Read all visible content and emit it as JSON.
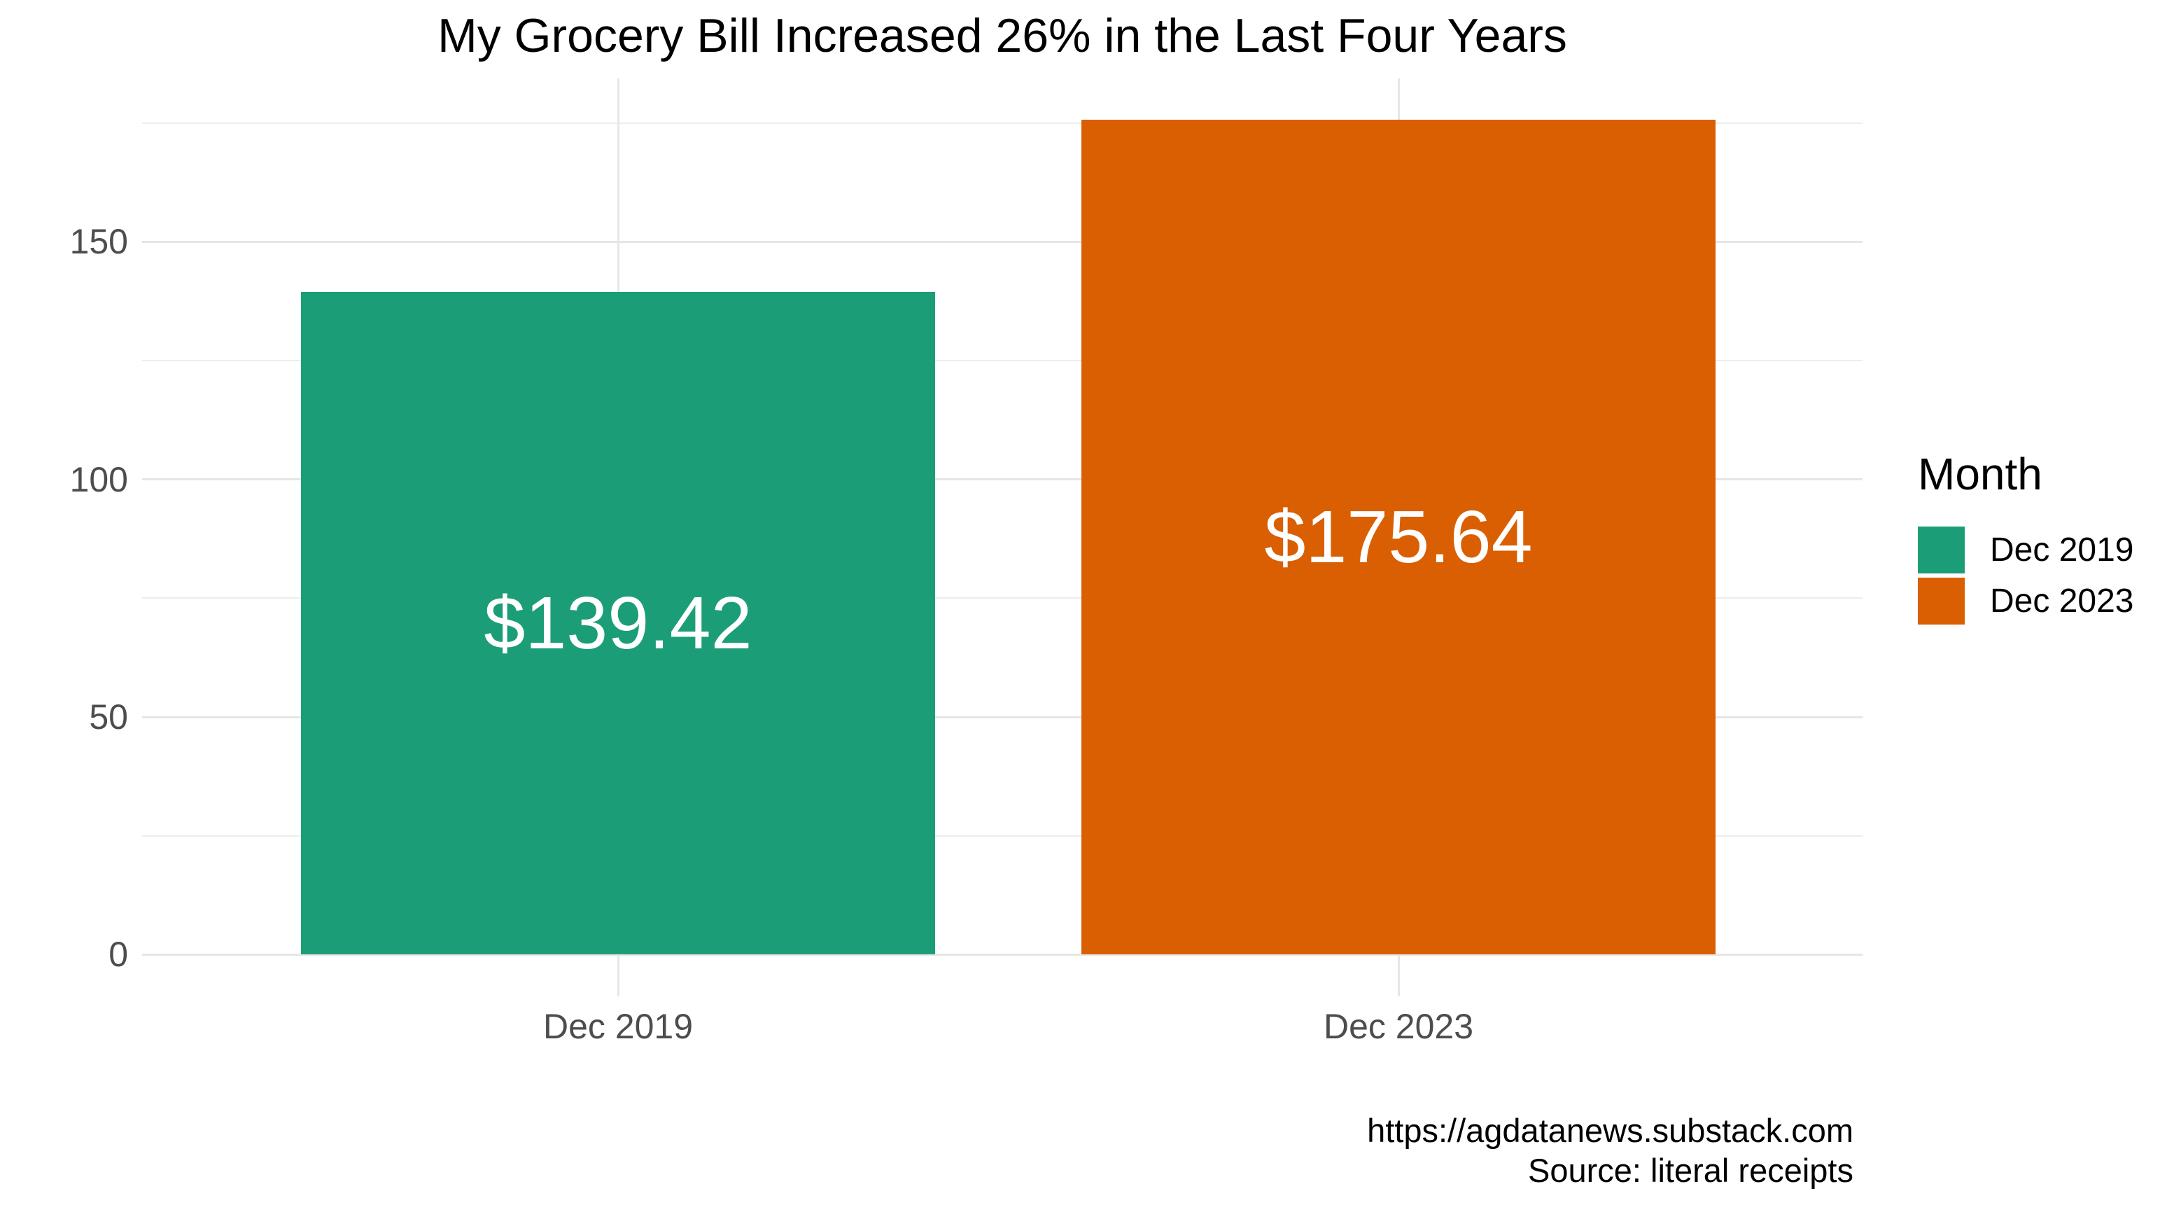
{
  "chart_data": {
    "type": "bar",
    "title": "My Grocery Bill Increased 26% in the Last Four Years",
    "categories": [
      "Dec 2019",
      "Dec 2023"
    ],
    "values": [
      139.42,
      175.64
    ],
    "bar_labels": [
      "$139.42",
      "$175.64"
    ],
    "series_colors": [
      "#1B9E77",
      "#D95F02"
    ],
    "xlabel": "",
    "ylabel": "",
    "y_major_ticks": [
      0,
      50,
      100,
      150
    ],
    "y_minor_ticks": [
      25,
      75,
      125,
      175
    ],
    "ylim": [
      -8.8,
      184.4
    ],
    "grid": "on",
    "legend": {
      "title": "Month",
      "position": "right",
      "entries": [
        {
          "label": "Dec 2019",
          "color": "#1B9E77"
        },
        {
          "label": "Dec 2023",
          "color": "#D95F02"
        }
      ]
    },
    "caption_lines": [
      "https://agdatanews.substack.com",
      "Source: literal receipts"
    ]
  },
  "colors": {
    "background": "#FFFFFF",
    "title_text": "#000000",
    "axis_text": "#4D4D4D",
    "bar_label_text": "#FFFFFF",
    "grid_major": "#E6E6E6",
    "grid_minor": "#EDEDED"
  }
}
